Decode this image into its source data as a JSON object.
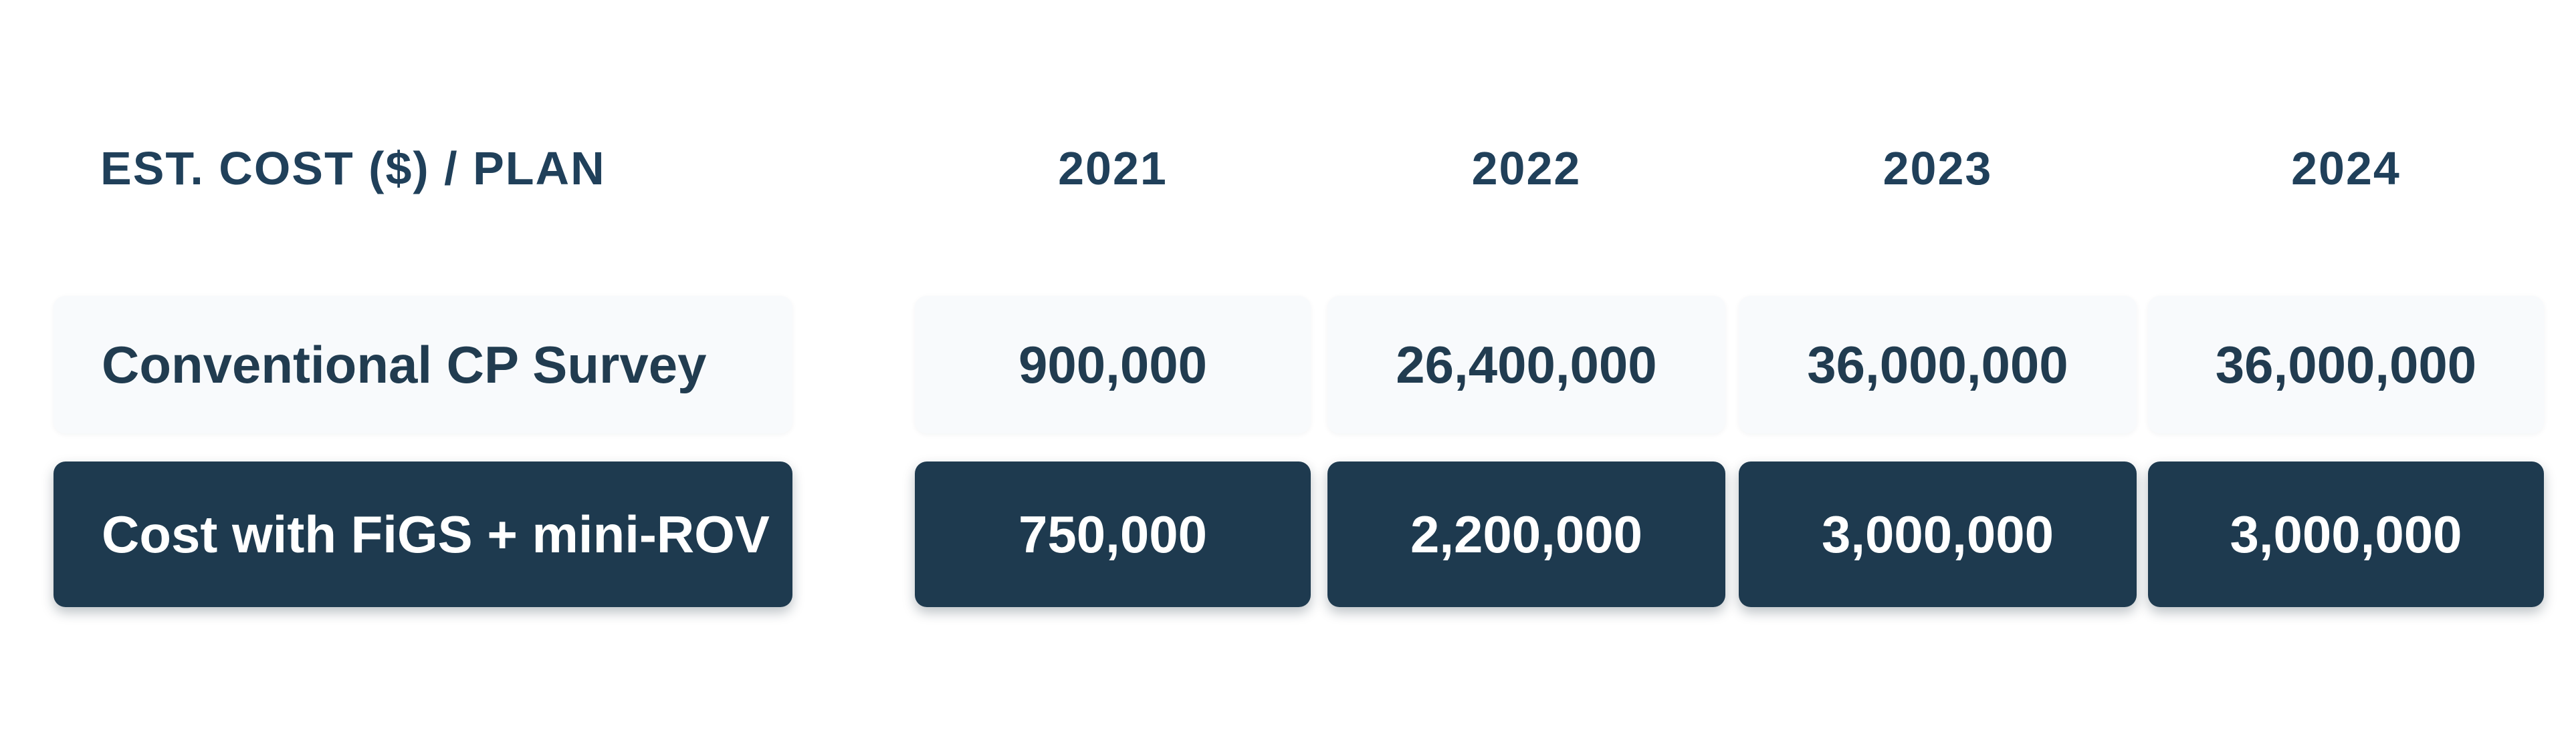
{
  "table": {
    "header": {
      "label": "EST. COST ($) / PLAN",
      "years": [
        "2021",
        "2022",
        "2023",
        "2024"
      ]
    },
    "rows": [
      {
        "label": "Conventional CP Survey",
        "style": "light",
        "values": [
          "900,000",
          "26,400,000",
          "36,000,000",
          "36,000,000"
        ]
      },
      {
        "label": "Cost with FiGS + mini-ROV",
        "style": "dark",
        "values": [
          "750,000",
          "2,200,000",
          "3,000,000",
          "3,000,000"
        ]
      }
    ]
  },
  "colors": {
    "background": "#ffffff",
    "dark_navy": "#1e3a4f",
    "light_cell": "#f8fafc",
    "text_dark": "#20405a",
    "text_light": "#ffffff"
  },
  "chart_data": {
    "type": "table",
    "title": "EST. COST ($) / PLAN",
    "columns": [
      "EST. COST ($) / PLAN",
      "2021",
      "2022",
      "2023",
      "2024"
    ],
    "rows": [
      {
        "plan": "Conventional CP Survey",
        "values": [
          900000,
          26400000,
          36000000,
          36000000
        ]
      },
      {
        "plan": "Cost with FiGS + mini-ROV",
        "values": [
          750000,
          2200000,
          3000000,
          3000000
        ]
      }
    ],
    "layout": {
      "row_styles": [
        "light",
        "dark"
      ],
      "grid": "off",
      "value_alignment": "center"
    }
  }
}
